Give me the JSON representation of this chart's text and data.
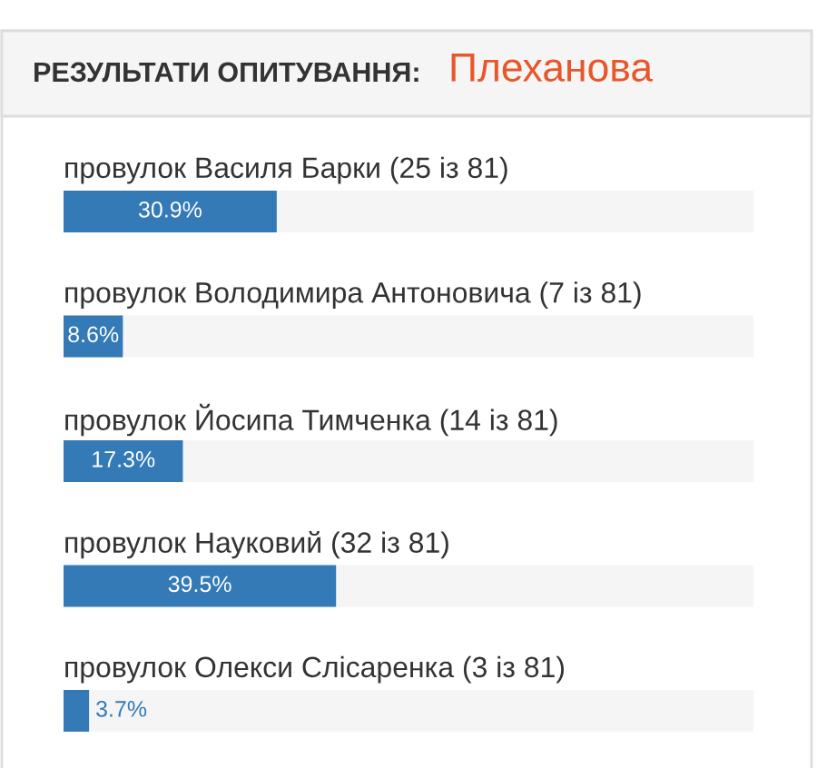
{
  "chart_data": {
    "type": "bar",
    "orientation": "horizontal",
    "title": "РЕЗУЛЬТАТИ ОПИТУВАННЯ:",
    "subtitle": "Плеханова",
    "categories": [
      "провулок Василя Барки (25 із 81)",
      "провулок Володимира Антоновича (7 із 81)",
      "провулок Йосипа Тимченка (14 із 81)",
      "провулок Науковий (32 із 81)",
      "провулок Олекси Слісаренка (3 із 81)"
    ],
    "values": [
      30.9,
      8.6,
      17.3,
      39.5,
      3.7
    ],
    "value_labels": [
      "30.9%",
      "8.6%",
      "17.3%",
      "39.5%",
      "3.7%"
    ],
    "color": "#337ab7",
    "xlim": [
      0,
      100
    ],
    "tick_labels": "y"
  }
}
